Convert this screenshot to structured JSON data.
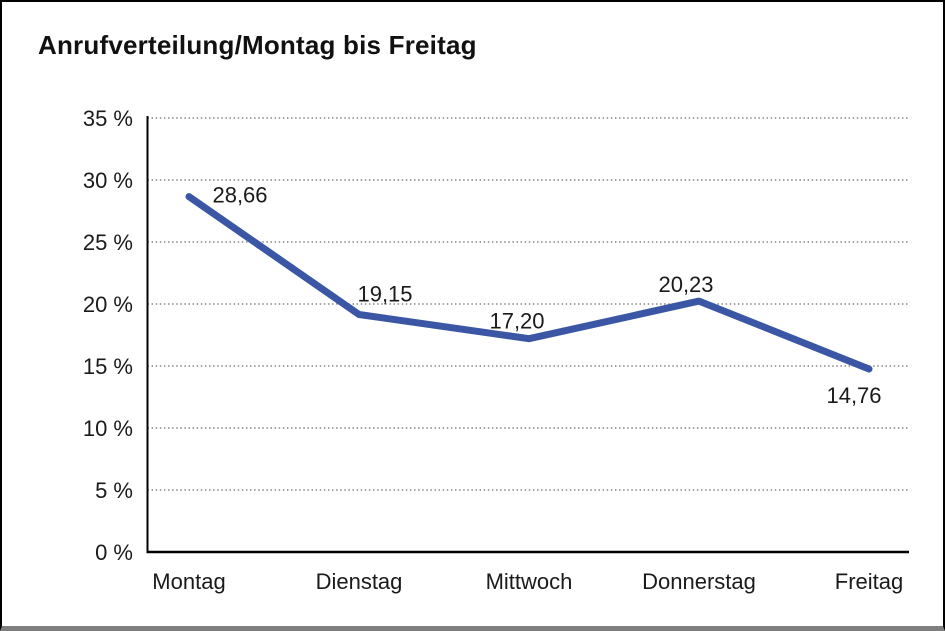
{
  "chart_data": {
    "type": "line",
    "title": "Anrufverteilung/Montag bis Freitag",
    "categories": [
      "Montag",
      "Dienstag",
      "Mittwoch",
      "Donnerstag",
      "Freitag"
    ],
    "series": [
      {
        "name": "Anrufverteilung",
        "values": [
          28.66,
          19.15,
          17.2,
          20.23,
          14.76
        ]
      }
    ],
    "value_labels": [
      "28,66",
      "19,15",
      "17,20",
      "20,23",
      "14,76"
    ],
    "y_tick_labels": [
      "0 %",
      "5 %",
      "10 %",
      "15 %",
      "20 %",
      "25 %",
      "30 %",
      "35 %"
    ],
    "y_ticks": [
      0,
      5,
      10,
      15,
      20,
      25,
      30,
      35
    ],
    "ylim": [
      0,
      35
    ],
    "xlabel": "",
    "ylabel": "",
    "legend": "none",
    "grid": "horizontal-dotted",
    "colors": {
      "line": "#3A56A4",
      "text": "#1A1A1A",
      "gridline": "#6E6E6E",
      "axis": "#000000",
      "frame_border": "#000000",
      "frame_bottom": "#7F7F7F"
    }
  }
}
